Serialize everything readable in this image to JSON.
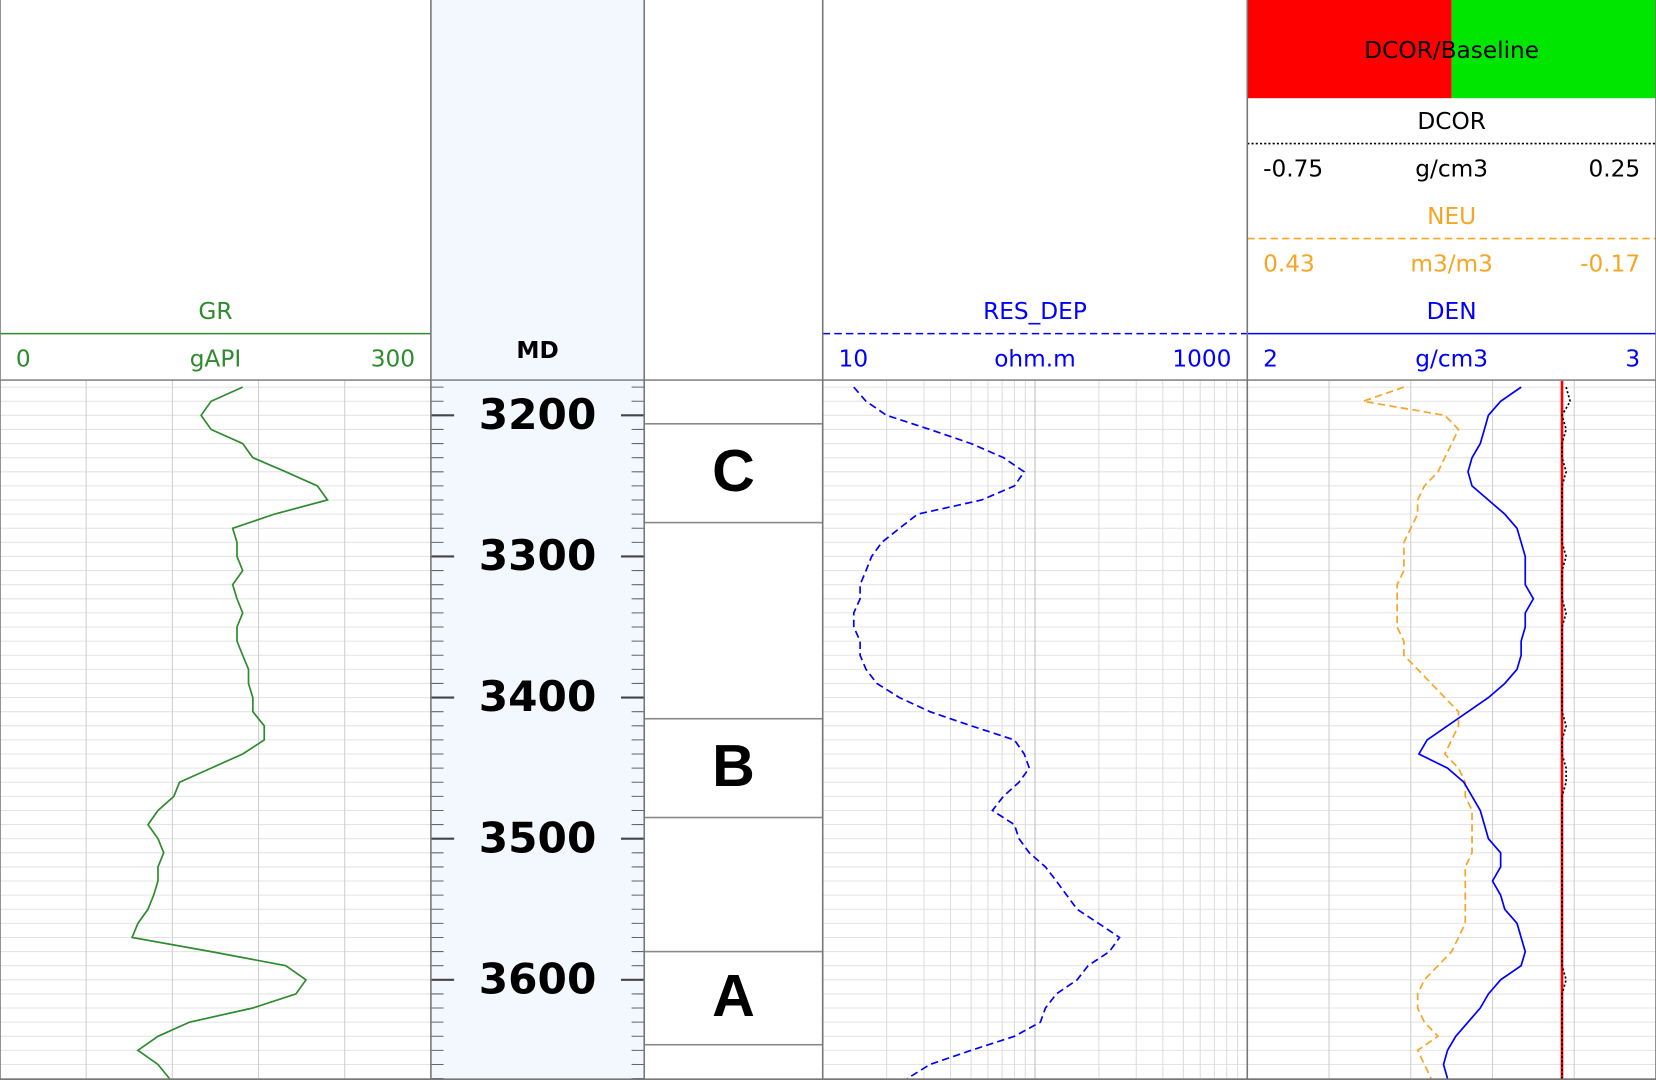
{
  "chart_data": {
    "type": "welllog",
    "ylim": [
      3175,
      3671
    ],
    "y": [
      3180,
      3190,
      3200,
      3210,
      3220,
      3230,
      3240,
      3250,
      3260,
      3270,
      3280,
      3290,
      3300,
      3310,
      3320,
      3330,
      3340,
      3350,
      3360,
      3370,
      3380,
      3390,
      3400,
      3410,
      3420,
      3430,
      3440,
      3450,
      3460,
      3470,
      3480,
      3490,
      3500,
      3510,
      3520,
      3530,
      3540,
      3550,
      3560,
      3570,
      3580,
      3590,
      3600,
      3610,
      3620,
      3630,
      3640,
      3650,
      3660,
      3670
    ],
    "tracks": [
      {
        "type": "curves",
        "series": [
          {
            "name": "GR",
            "unit": "gAPI",
            "color": "#2e8b2e",
            "line_style": "solid",
            "xlim": [
              0,
              300
            ],
            "values": [
              169,
              147,
              140,
              147,
              169,
              176,
              199,
              221,
              228,
              191,
              162,
              165,
              165,
              169,
              162,
              165,
              169,
              165,
              165,
              169,
              173,
              173,
              176,
              176,
              184,
              184,
              169,
              147,
              125,
              121,
              110,
              103,
              110,
              114,
              110,
              110,
              107,
              103,
              96,
              92,
              147,
              199,
              213,
              206,
              176,
              132,
              110,
              96,
              110,
              118
            ]
          }
        ]
      },
      {
        "type": "depth",
        "title": "MD",
        "yticks": [
          3200,
          3300,
          3400,
          3500,
          3600
        ]
      },
      {
        "type": "zones",
        "zones": [
          {
            "label": "C",
            "top": 3206,
            "base": 3276
          },
          {
            "label": "B",
            "top": 3415,
            "base": 3485
          },
          {
            "label": "A",
            "top": 3580,
            "base": 3646
          }
        ]
      },
      {
        "type": "curves",
        "xscale": "log",
        "series": [
          {
            "name": "RES_DEP",
            "unit": "ohm.m",
            "color": "#0000ff",
            "line_style": "dashed",
            "xlim": [
              10,
              1000
            ],
            "values": [
              14,
              16,
              20,
              32,
              50,
              71,
              89,
              80,
              56,
              28,
              23,
              19,
              17,
              16,
              15,
              15,
              14,
              14,
              15,
              15,
              16,
              18,
              23,
              32,
              50,
              80,
              89,
              94,
              84,
              71,
              63,
              80,
              84,
              94,
              112,
              126,
              141,
              158,
              199,
              250,
              224,
              178,
              158,
              126,
              112,
              106,
              80,
              50,
              32,
              25
            ]
          }
        ]
      },
      {
        "type": "curves",
        "header": "DCOR/Baseline",
        "header_colors": [
          "#ff0000",
          "#00e600"
        ],
        "series": [
          {
            "name": "DCOR",
            "unit": "g/cm3",
            "color": "#000000",
            "line_style": "dotted",
            "xlim": [
              -0.75,
              0.25
            ],
            "baseline": {
              "value": 0.02,
              "color": "#ff0000"
            },
            "values": [
              0.03,
              0.04,
              0.02,
              0.03,
              0.02,
              0.02,
              0.03,
              0.02,
              0.02,
              0.02,
              0.02,
              0.02,
              0.03,
              0.02,
              0.02,
              0.02,
              0.03,
              0.02,
              0.02,
              0.02,
              0.02,
              0.02,
              0.02,
              0.02,
              0.03,
              0.02,
              0.02,
              0.03,
              0.03,
              0.02,
              0.02,
              0.02,
              0.02,
              0.02,
              0.02,
              0.02,
              0.02,
              0.02,
              0.02,
              0.02,
              0.02,
              0.02,
              0.03,
              0.02,
              0.02,
              0.02,
              0.02,
              0.02,
              0.02,
              0.02
            ]
          },
          {
            "name": "NEU",
            "unit": "m3/m3",
            "color": "#f5a623",
            "line_style": "dashed",
            "xlim": [
              0.43,
              -0.17
            ],
            "values": [
              0.2,
              0.26,
              0.14,
              0.12,
              0.13,
              0.14,
              0.15,
              0.17,
              0.18,
              0.18,
              0.19,
              0.2,
              0.2,
              0.2,
              0.21,
              0.21,
              0.21,
              0.21,
              0.2,
              0.2,
              0.18,
              0.16,
              0.14,
              0.12,
              0.12,
              0.13,
              0.14,
              0.12,
              0.11,
              0.11,
              0.1,
              0.1,
              0.1,
              0.1,
              0.11,
              0.11,
              0.11,
              0.11,
              0.11,
              0.12,
              0.13,
              0.15,
              0.17,
              0.18,
              0.18,
              0.17,
              0.15,
              0.18,
              0.17,
              0.16
            ]
          },
          {
            "name": "DEN",
            "unit": "g/cm3",
            "color": "#0000ff",
            "line_style": "solid",
            "xlim": [
              2,
              3
            ],
            "values": [
              2.67,
              2.62,
              2.59,
              2.58,
              2.57,
              2.55,
              2.54,
              2.55,
              2.59,
              2.63,
              2.66,
              2.67,
              2.68,
              2.68,
              2.68,
              2.7,
              2.68,
              2.68,
              2.67,
              2.67,
              2.66,
              2.63,
              2.59,
              2.54,
              2.49,
              2.44,
              2.42,
              2.49,
              2.53,
              2.55,
              2.57,
              2.58,
              2.59,
              2.62,
              2.62,
              2.6,
              2.62,
              2.63,
              2.66,
              2.67,
              2.68,
              2.67,
              2.62,
              2.59,
              2.57,
              2.54,
              2.51,
              2.49,
              2.48,
              2.49
            ]
          }
        ]
      }
    ]
  }
}
